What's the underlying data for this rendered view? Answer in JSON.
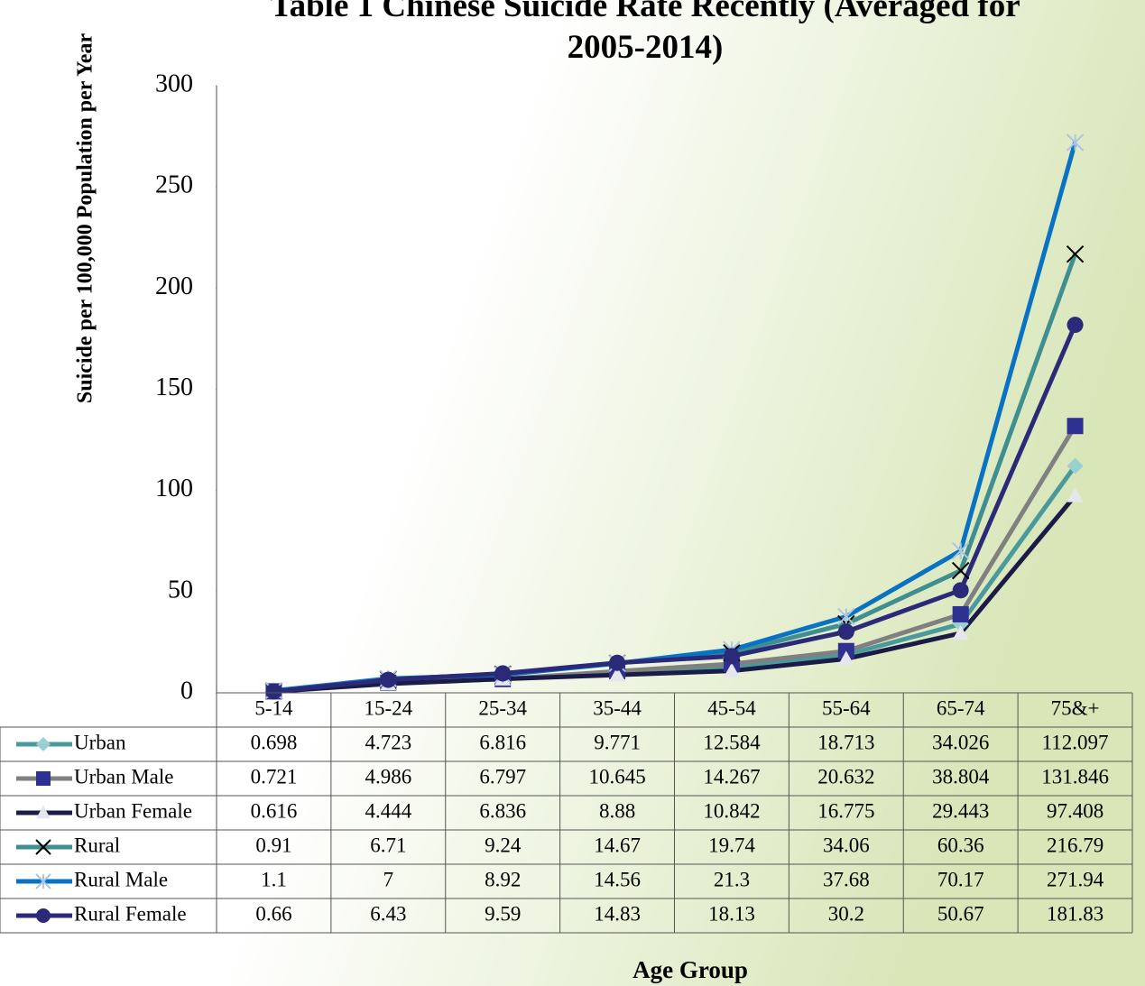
{
  "chart_data": {
    "type": "line",
    "title": "Table 1  Chinese Suicide Rate Recently (Averaged for 2005-2014)",
    "y_label": "Suicide per 100,000 Population per Year",
    "x_label": "Age Group",
    "categories": [
      "5-14",
      "15-24",
      "25-34",
      "35-44",
      "45-54",
      "55-64",
      "65-74",
      "75&+"
    ],
    "ylim": [
      0,
      300
    ],
    "yticks": [
      0,
      50,
      100,
      150,
      200,
      250,
      300
    ],
    "grid": false,
    "data_table": true,
    "series": [
      {
        "name": "Urban",
        "color": "#4a9a9c",
        "marker": "diamond",
        "marker_color": "#9ccfd2",
        "values": [
          0.698,
          4.723,
          6.816,
          9.771,
          12.584,
          18.713,
          34.026,
          112.097
        ]
      },
      {
        "name": "Urban Male",
        "color": "#808080",
        "marker": "square",
        "marker_color": "#2e3192",
        "values": [
          0.721,
          4.986,
          6.797,
          10.645,
          14.267,
          20.632,
          38.804,
          131.846
        ]
      },
      {
        "name": "Urban Female",
        "color": "#1b1b48",
        "marker": "triangle",
        "marker_color": "#e6e6ee",
        "values": [
          0.616,
          4.444,
          6.836,
          8.88,
          10.842,
          16.775,
          29.443,
          97.408
        ]
      },
      {
        "name": "Rural",
        "color": "#3f8f91",
        "marker": "x",
        "marker_color": "#000000",
        "values": [
          0.91,
          6.71,
          9.24,
          14.67,
          19.74,
          34.06,
          60.36,
          216.79
        ]
      },
      {
        "name": "Rural Male",
        "color": "#0a72c2",
        "marker": "star",
        "marker_color": "#aac6e0",
        "values": [
          1.1,
          7,
          8.92,
          14.56,
          21.3,
          37.68,
          70.17,
          271.94
        ]
      },
      {
        "name": "Rural Female",
        "color": "#2a2a78",
        "marker": "circle",
        "marker_color": "#2a2a78",
        "values": [
          0.66,
          6.43,
          9.59,
          14.83,
          18.13,
          30.2,
          50.67,
          181.83
        ]
      }
    ]
  }
}
